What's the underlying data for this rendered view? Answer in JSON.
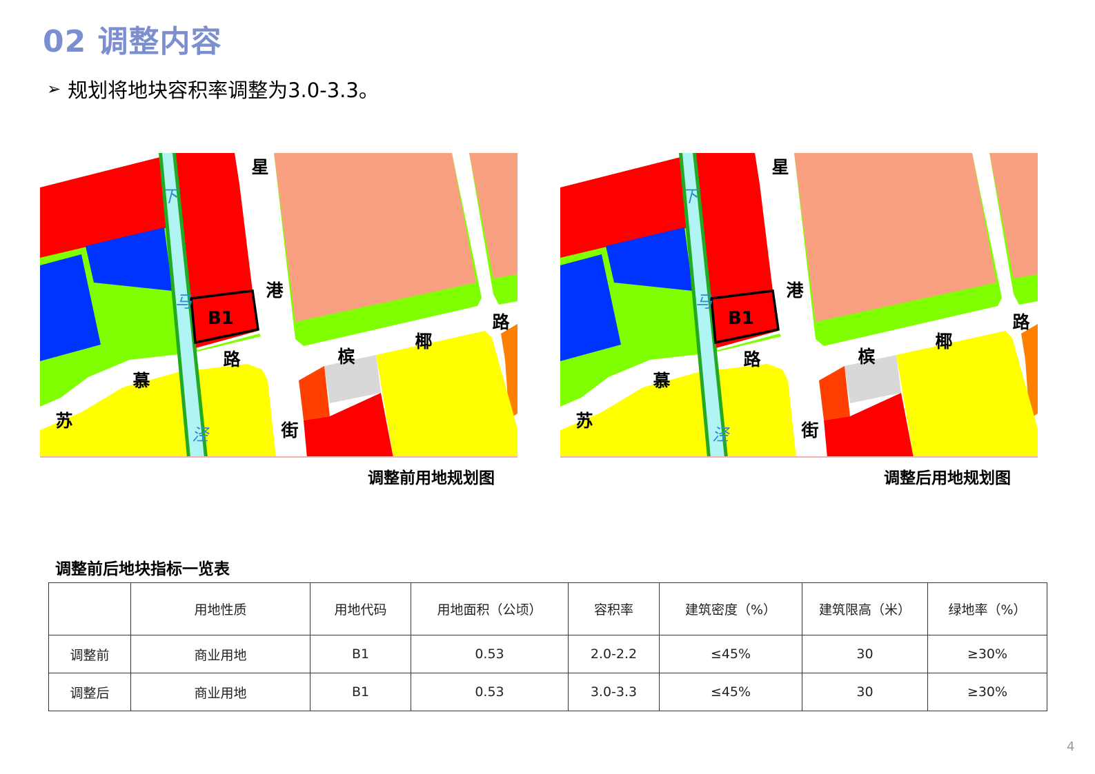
{
  "header": {
    "title": "02 调整内容"
  },
  "bullet": {
    "icon": "arrow-right-icon",
    "text": "规划将地块容积率调整为3.0-3.3。"
  },
  "maps": [
    {
      "caption": "调整前用地规划图",
      "parcel_label": "B1"
    },
    {
      "caption": "调整后用地规划图",
      "parcel_label": "B1"
    }
  ],
  "map_labels": {
    "xing": "星",
    "gang": "港",
    "lu1": "路",
    "ye": "椰",
    "bin": "槟",
    "lu2": "路",
    "mu": "慕",
    "su": "苏",
    "jie": "街",
    "xia": "下",
    "ma": "马",
    "jing": "泾"
  },
  "land_use_colors": {
    "commercial": "#ff0000",
    "education": "#0033ff",
    "green": "#80ff00",
    "residential": "#ffff00",
    "salmon": "#f8a080",
    "river": "#b0f4f4",
    "orange": "#ff8000",
    "orange_red": "#ff4000",
    "gray": "#d8d8d8"
  },
  "table": {
    "title": "调整前后地块指标一览表",
    "headers": [
      "",
      "用地性质",
      "用地代码",
      "用地面积（公顷）",
      "容积率",
      "建筑密度（%）",
      "建筑限高（米）",
      "绿地率（%）"
    ],
    "rows": [
      [
        "调整前",
        "商业用地",
        "B1",
        "0.53",
        "2.0-2.2",
        "≤45%",
        "30",
        "≥30%"
      ],
      [
        "调整后",
        "商业用地",
        "B1",
        "0.53",
        "3.0-3.3",
        "≤45%",
        "30",
        "≥30%"
      ]
    ]
  },
  "page_number": "4"
}
